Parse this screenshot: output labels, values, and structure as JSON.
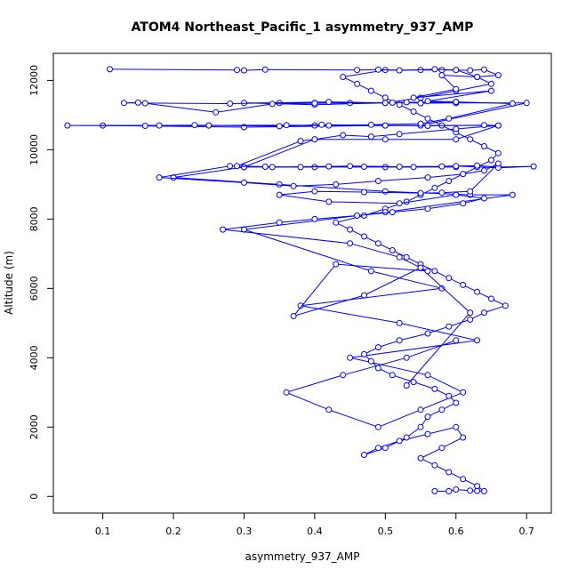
{
  "chart_data": {
    "type": "line",
    "title": "ATOM4 Northeast_Pacific_1 asymmetry_937_AMP",
    "xlabel": "asymmetry_937_AMP",
    "ylabel": "Altitude (m)",
    "xlim": [
      0.03,
      0.735
    ],
    "ylim": [
      -480,
      12780
    ],
    "x_ticks": [
      0.1,
      0.2,
      0.3,
      0.4,
      0.5,
      0.6,
      0.7
    ],
    "y_ticks": [
      0,
      2000,
      4000,
      6000,
      8000,
      10000,
      12000
    ],
    "grid": false,
    "legend": "none",
    "marker": "open-circle",
    "color": "#0000ff",
    "series": [
      {
        "x": [
          0.57,
          0.59,
          0.6,
          0.62,
          0.63,
          0.64,
          0.63,
          0.61,
          0.59,
          0.57,
          0.55,
          0.58,
          0.61,
          0.6,
          0.56,
          0.52,
          0.49,
          0.47,
          0.5,
          0.53,
          0.55,
          0.56,
          0.58,
          0.6,
          0.59,
          0.57,
          0.54,
          0.51,
          0.49,
          0.48,
          0.47,
          0.49,
          0.52,
          0.56,
          0.59,
          0.62,
          0.64,
          0.67,
          0.65,
          0.63,
          0.61,
          0.59,
          0.57,
          0.55,
          0.53,
          0.51,
          0.49,
          0.47,
          0.45,
          0.43,
          0.47,
          0.5,
          0.53,
          0.55,
          0.57,
          0.59,
          0.61,
          0.63,
          0.65,
          0.66,
          0.64,
          0.62,
          0.6,
          0.58,
          0.56,
          0.54,
          0.52,
          0.5,
          0.48,
          0.46,
          0.44,
          0.5,
          0.55,
          0.58,
          0.6,
          0.63,
          0.65,
          0.6,
          0.55,
          0.5,
          0.45,
          0.4,
          0.35,
          0.3,
          0.4,
          0.5,
          0.6,
          0.7,
          0.55,
          0.4,
          0.25,
          0.1,
          0.3,
          0.5,
          0.66,
          0.6,
          0.5,
          0.4,
          0.3,
          0.4,
          0.5,
          0.6,
          0.3,
          0.2,
          0.35,
          0.5,
          0.62,
          0.68,
          0.5,
          0.3,
          0.48,
          0.58,
          0.38,
          0.52,
          0.63,
          0.45,
          0.56,
          0.61,
          0.55,
          0.49,
          0.42,
          0.36,
          0.44,
          0.53,
          0.6
        ],
        "y": [
          150,
          150,
          200,
          170,
          160,
          150,
          300,
          500,
          700,
          900,
          1100,
          1400,
          1700,
          2000,
          1800,
          1600,
          1400,
          1200,
          1400,
          1700,
          2000,
          2300,
          2500,
          2700,
          2900,
          3100,
          3300,
          3500,
          3700,
          3900,
          4100,
          4300,
          4500,
          4700,
          4900,
          5100,
          5300,
          5500,
          5700,
          5900,
          6100,
          6300,
          6500,
          6700,
          6900,
          7100,
          7300,
          7500,
          7700,
          7900,
          8100,
          8300,
          8500,
          8700,
          8900,
          9100,
          9300,
          9500,
          9700,
          9900,
          10100,
          10300,
          10500,
          10700,
          10900,
          11100,
          11300,
          11500,
          11700,
          11900,
          12100,
          12300,
          12300,
          12300,
          12300,
          12100,
          11900,
          11700,
          11500,
          11350,
          11350,
          11350,
          11350,
          11350,
          11300,
          11350,
          11350,
          11350,
          10700,
          10700,
          10700,
          10700,
          10650,
          10700,
          10700,
          10300,
          10300,
          10300,
          9500,
          9500,
          9500,
          9500,
          9500,
          9200,
          9000,
          8800,
          8700,
          8700,
          8200,
          7700,
          6500,
          6000,
          5500,
          5000,
          4500,
          4000,
          3500,
          3000,
          2500,
          2000,
          2500,
          3000,
          3500,
          4000,
          4500
        ]
      },
      {
        "x": [
          0.11,
          0.29,
          0.3,
          0.33,
          0.46,
          0.49,
          0.52,
          0.57,
          0.6,
          0.62,
          0.64,
          0.66,
          0.63,
          0.58,
          0.6,
          0.54,
          0.65,
          0.56,
          0.6,
          0.6,
          0.55,
          0.53,
          0.5,
          0.42,
          0.28,
          0.13,
          0.15,
          0.16,
          0.26,
          0.34,
          0.4,
          0.51,
          0.6,
          0.68,
          0.59,
          0.55,
          0.48,
          0.42,
          0.36,
          0.25,
          0.16,
          0.05,
          0.18,
          0.23,
          0.35,
          0.41,
          0.5,
          0.56,
          0.64,
          0.66,
          0.6,
          0.52,
          0.48,
          0.44,
          0.4,
          0.38,
          0.29,
          0.33,
          0.38,
          0.45,
          0.52,
          0.58,
          0.63,
          0.66,
          0.71,
          0.66,
          0.6,
          0.54,
          0.47,
          0.42,
          0.34,
          0.28,
          0.18,
          0.3,
          0.37,
          0.43,
          0.49,
          0.56,
          0.61,
          0.64,
          0.66,
          0.62,
          0.58,
          0.55,
          0.47,
          0.4,
          0.35,
          0.42,
          0.52,
          0.6,
          0.64,
          0.61,
          0.56,
          0.51,
          0.46,
          0.4,
          0.35,
          0.27,
          0.45,
          0.52,
          0.56,
          0.43,
          0.37,
          0.47,
          0.55,
          0.62,
          0.53
        ],
        "y": [
          12320,
          12300,
          12290,
          12310,
          12300,
          12310,
          12290,
          12320,
          12300,
          12290,
          12310,
          12150,
          12100,
          12150,
          11750,
          11500,
          11700,
          11400,
          11380,
          11360,
          11340,
          11370,
          11350,
          11380,
          11330,
          11350,
          11360,
          11340,
          11080,
          11320,
          11340,
          11360,
          11380,
          11330,
          10900,
          10750,
          10720,
          10700,
          10710,
          10700,
          10690,
          10700,
          10700,
          10710,
          10680,
          10720,
          10700,
          10690,
          10710,
          10700,
          10600,
          10450,
          10380,
          10420,
          10300,
          10250,
          9530,
          9510,
          9500,
          9530,
          9510,
          9520,
          9540,
          9500,
          9520,
          9480,
          9530,
          9500,
          9510,
          9520,
          9500,
          9530,
          9200,
          9050,
          8950,
          9000,
          9100,
          9200,
          9300,
          9400,
          9600,
          8800,
          8760,
          8750,
          8780,
          8800,
          8700,
          8500,
          8450,
          8700,
          8600,
          8450,
          8300,
          8200,
          8100,
          8000,
          7900,
          7700,
          7300,
          6900,
          6500,
          6700,
          5200,
          5800,
          6600,
          5300,
          3200
        ]
      }
    ]
  }
}
